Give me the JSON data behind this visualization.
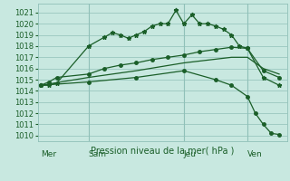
{
  "background_color": "#c8e8e0",
  "grid_color": "#90c0b8",
  "line_color": "#1a5e28",
  "text_color": "#1a5e28",
  "xlabel_text": "Pression niveau de la mer( hPa )",
  "x_tick_labels": [
    "Mer",
    "Sam",
    "Jeu",
    "Ven"
  ],
  "x_tick_positions": [
    0,
    3,
    9,
    13
  ],
  "ylim": [
    1009.5,
    1021.8
  ],
  "yticks": [
    1010,
    1011,
    1012,
    1013,
    1014,
    1015,
    1016,
    1017,
    1018,
    1019,
    1020,
    1021
  ],
  "xlim": [
    -0.2,
    15.5
  ],
  "vlines_x": [
    3,
    9,
    13
  ],
  "series1_x": [
    0,
    0.5,
    1,
    3,
    4,
    4.5,
    5,
    5.5,
    6,
    6.5,
    7,
    7.5,
    8,
    8.5,
    9,
    9.5,
    10,
    10.5,
    11,
    11.5,
    12,
    12.5,
    13,
    14,
    15
  ],
  "series1_y": [
    1014.5,
    1014.5,
    1014.7,
    1018.0,
    1018.8,
    1019.2,
    1019.0,
    1018.7,
    1019.0,
    1019.3,
    1019.8,
    1020.0,
    1020.0,
    1021.2,
    1020.0,
    1020.8,
    1020.0,
    1020.0,
    1019.8,
    1019.5,
    1019.0,
    1018.0,
    1017.8,
    1015.2,
    1014.5
  ],
  "series2_x": [
    0,
    0.5,
    1,
    3,
    4,
    5,
    6,
    7,
    8,
    9,
    10,
    11,
    12,
    13,
    14,
    15
  ],
  "series2_y": [
    1014.5,
    1014.8,
    1015.2,
    1015.5,
    1016.0,
    1016.3,
    1016.5,
    1016.8,
    1017.0,
    1017.2,
    1017.5,
    1017.7,
    1017.9,
    1017.8,
    1015.8,
    1015.2
  ],
  "series3_x": [
    0,
    3,
    6,
    9,
    12,
    13,
    14,
    15
  ],
  "series3_y": [
    1014.5,
    1015.2,
    1015.8,
    1016.5,
    1017.0,
    1017.0,
    1016.0,
    1015.5
  ],
  "series4_x": [
    0,
    3,
    6,
    9,
    11,
    12,
    13,
    13.5,
    14,
    14.5,
    15
  ],
  "series4_y": [
    1014.5,
    1014.8,
    1015.2,
    1015.8,
    1015.0,
    1014.5,
    1013.5,
    1012.0,
    1011.0,
    1010.2,
    1010.1
  ],
  "series1_markersize": 3.5,
  "series2_markersize": 2.5,
  "series4_markersize": 2.5,
  "linewidth": 0.9
}
